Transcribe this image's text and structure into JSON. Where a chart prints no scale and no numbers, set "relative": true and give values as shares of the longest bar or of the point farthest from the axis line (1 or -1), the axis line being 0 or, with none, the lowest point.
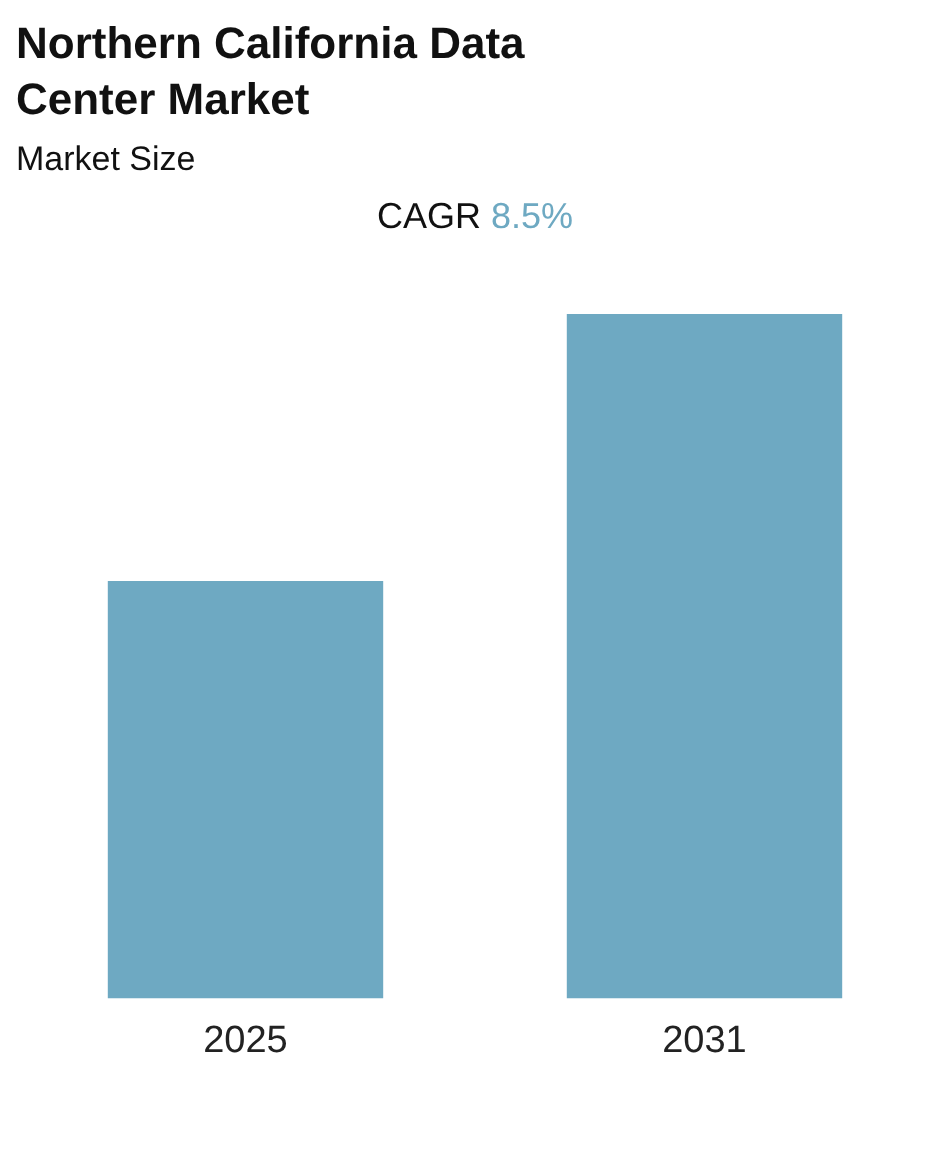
{
  "chart_data": {
    "type": "bar",
    "title": "Northern California Data Center Market",
    "subtitle": "Market Size",
    "annotations": [
      "CAGR 8.5%"
    ],
    "categories": [
      "2025",
      "2031"
    ],
    "values": [
      0.61,
      1
    ],
    "color": "#6ea9c2",
    "relative": true,
    "grid": false,
    "legend": false
  }
}
